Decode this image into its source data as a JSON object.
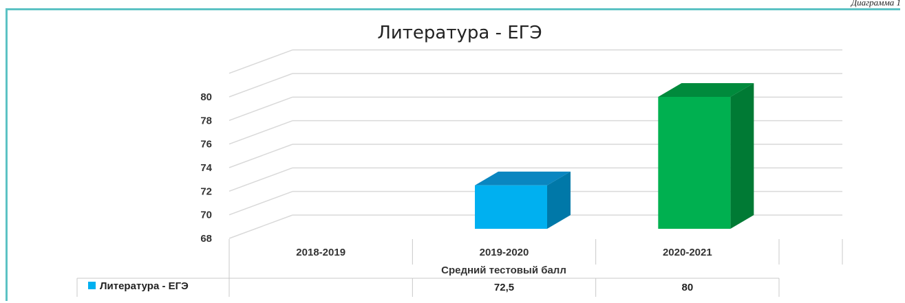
{
  "caption": "Диаграмма 1",
  "chart_data": {
    "type": "bar",
    "title": "Литература - ЕГЭ",
    "xlabel": "Средний тестовый балл",
    "ylabel": "",
    "categories": [
      "2018-2019",
      "2019-2020",
      "2020-2021"
    ],
    "series": [
      {
        "name": "Литература - ЕГЭ",
        "values": [
          null,
          72.5,
          80
        ],
        "value_labels": [
          "",
          "72,5",
          "80"
        ]
      }
    ],
    "ylim": [
      68,
      80
    ],
    "y_ticks": [
      68,
      70,
      72,
      74,
      76,
      78,
      80
    ],
    "grid": true,
    "legend": "data-table-left",
    "three_d": true,
    "colors": {
      "2019-2020": {
        "front": "#00b0f0",
        "side": "#0078a8",
        "top": "#0a86c0"
      },
      "2020-2021": {
        "front": "#00b050",
        "side": "#007a34",
        "top": "#008a3c"
      },
      "legend_key": "#00b0f0",
      "grid": "#d9d9d9",
      "border": "#5cc2c4"
    }
  }
}
